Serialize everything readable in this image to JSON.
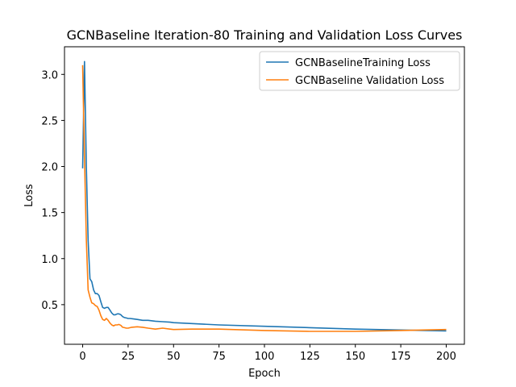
{
  "chart_data": {
    "type": "line",
    "title": "GCNBaseline Iteration-80 Training and Validation Loss Curves",
    "xlabel": "Epoch",
    "ylabel": "Loss",
    "xlim": [
      -10,
      210
    ],
    "ylim": [
      0.07,
      3.3
    ],
    "xticks": [
      0,
      25,
      50,
      75,
      100,
      125,
      150,
      175,
      200
    ],
    "yticks": [
      0.5,
      1.0,
      1.5,
      2.0,
      2.5,
      3.0
    ],
    "ytick_labels": [
      "0.5",
      "1.0",
      "1.5",
      "2.0",
      "2.5",
      "3.0"
    ],
    "grid": false,
    "legend_position": "top-right",
    "series": [
      {
        "name": "GCNBaselineTraining Loss",
        "color": "#1f77b4",
        "x": [
          0,
          1,
          2,
          3,
          4,
          5,
          6,
          7,
          8,
          9,
          10,
          11,
          12,
          13,
          14,
          15,
          16,
          17,
          18,
          19,
          20,
          21,
          22,
          23,
          24,
          25,
          26,
          28,
          30,
          33,
          36,
          40,
          44,
          48,
          50,
          60,
          75,
          100,
          125,
          150,
          175,
          200
        ],
        "y": [
          1.98,
          3.14,
          2.0,
          1.2,
          0.78,
          0.75,
          0.66,
          0.62,
          0.62,
          0.6,
          0.53,
          0.47,
          0.46,
          0.47,
          0.47,
          0.44,
          0.41,
          0.39,
          0.39,
          0.4,
          0.4,
          0.39,
          0.37,
          0.36,
          0.355,
          0.35,
          0.35,
          0.345,
          0.34,
          0.33,
          0.33,
          0.32,
          0.315,
          0.31,
          0.305,
          0.295,
          0.28,
          0.265,
          0.25,
          0.235,
          0.225,
          0.215
        ]
      },
      {
        "name": "GCNBaseline Validation Loss",
        "color": "#ff7f0e",
        "x": [
          0,
          1,
          2,
          3,
          4,
          5,
          6,
          7,
          8,
          9,
          10,
          11,
          12,
          13,
          14,
          15,
          16,
          17,
          18,
          19,
          20,
          21,
          22,
          23,
          24,
          25,
          27,
          30,
          33,
          36,
          40,
          44,
          48,
          50,
          60,
          75,
          100,
          125,
          150,
          175,
          200
        ],
        "y": [
          3.1,
          2.1,
          1.2,
          0.66,
          0.58,
          0.52,
          0.51,
          0.49,
          0.48,
          0.44,
          0.38,
          0.34,
          0.33,
          0.35,
          0.33,
          0.3,
          0.28,
          0.27,
          0.28,
          0.28,
          0.285,
          0.275,
          0.255,
          0.25,
          0.245,
          0.245,
          0.255,
          0.26,
          0.255,
          0.245,
          0.235,
          0.245,
          0.235,
          0.23,
          0.235,
          0.235,
          0.22,
          0.21,
          0.21,
          0.22,
          0.23
        ]
      }
    ]
  }
}
